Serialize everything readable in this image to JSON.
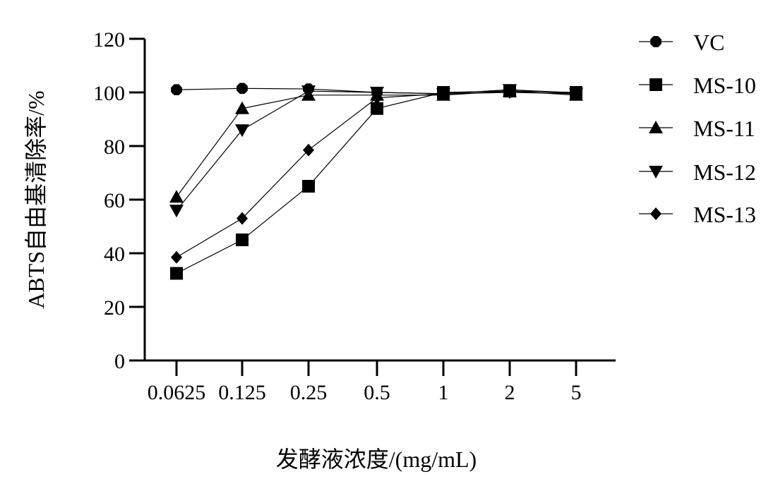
{
  "chart_data": {
    "type": "line",
    "xlabel": "发酵液浓度/(mg/mL)",
    "ylabel": "ABTS自由基清除率/%",
    "categories": [
      "0.0625",
      "0.125",
      "0.25",
      "0.5",
      "1",
      "2",
      "5"
    ],
    "ylim": [
      0,
      120
    ],
    "yticks": [
      "0",
      "20",
      "40",
      "60",
      "80",
      "100",
      "120"
    ],
    "legend_position": "right",
    "grid": false,
    "series": [
      {
        "name": "VC",
        "marker": "circle",
        "values": [
          101,
          101.5,
          101.3,
          100,
          99.5,
          101,
          99.8
        ]
      },
      {
        "name": "MS-10",
        "marker": "square",
        "values": [
          32.5,
          45,
          65,
          94,
          100,
          100.5,
          100
        ]
      },
      {
        "name": "MS-11",
        "marker": "triangle-up",
        "values": [
          61,
          94,
          99,
          99,
          99,
          100.5,
          99
        ]
      },
      {
        "name": "MS-12",
        "marker": "triangle-down",
        "values": [
          56,
          86,
          100.5,
          100,
          99.5,
          101,
          99.5
        ]
      },
      {
        "name": "MS-13",
        "marker": "diamond",
        "values": [
          38.5,
          53,
          78.5,
          98,
          99.5,
          100,
          99.5
        ]
      }
    ],
    "colors": {
      "marks": "#000000",
      "background": "#ffffff"
    }
  }
}
